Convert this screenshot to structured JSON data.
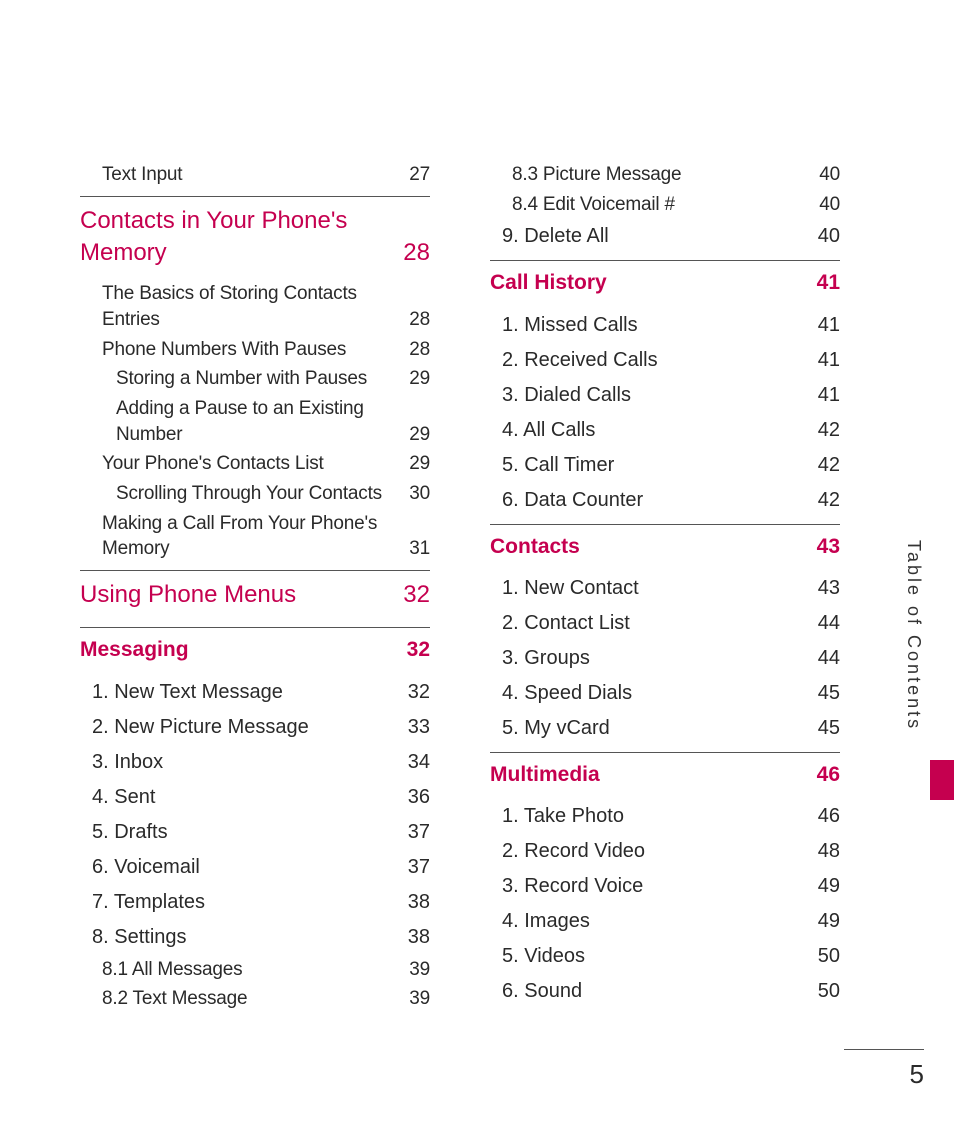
{
  "colors": {
    "accent": "#c5004f",
    "text": "#2a2a2a",
    "rule": "#555555",
    "bg": "#ffffff"
  },
  "pageNumber": "5",
  "sideLabel": "Table of Contents",
  "left": [
    {
      "cls": "item1",
      "label": "Text Input",
      "page": "27"
    },
    {
      "cls": "chapter",
      "label": "Contacts in Your Phone's Memory",
      "page": "28"
    },
    {
      "cls": "item1",
      "label": "The Basics of Storing Contacts Entries",
      "page": "28"
    },
    {
      "cls": "item1",
      "label": "Phone Numbers With Pauses",
      "page": "28"
    },
    {
      "cls": "item2",
      "label": "Storing a Number with Pauses",
      "page": "29"
    },
    {
      "cls": "item2",
      "label": "Adding a Pause to an Existing Number",
      "page": "29"
    },
    {
      "cls": "item1",
      "label": "Your Phone's Contacts List",
      "page": "29"
    },
    {
      "cls": "item2",
      "label": "Scrolling Through Your Contacts",
      "page": "30"
    },
    {
      "cls": "item1",
      "label": "Making a Call From Your Phone's Memory",
      "page": "31"
    },
    {
      "cls": "chapter",
      "label": "Using Phone Menus",
      "page": "32"
    },
    {
      "cls": "section",
      "label": "Messaging",
      "page": "32"
    },
    {
      "cls": "item-bold",
      "label": "1. New Text Message",
      "page": "32"
    },
    {
      "cls": "item-bold",
      "label": "2. New Picture Message",
      "page": "33"
    },
    {
      "cls": "item-bold",
      "label": "3. Inbox",
      "page": "34"
    },
    {
      "cls": "item-bold",
      "label": "4. Sent",
      "page": "36"
    },
    {
      "cls": "item-bold",
      "label": "5. Drafts",
      "page": "37"
    },
    {
      "cls": "item-bold",
      "label": "6. Voicemail",
      "page": "37"
    },
    {
      "cls": "item-bold",
      "label": "7. Templates",
      "page": "38"
    },
    {
      "cls": "item-bold",
      "label": "8. Settings",
      "page": "38"
    },
    {
      "cls": "item1",
      "label": "8.1 All Messages",
      "page": "39"
    },
    {
      "cls": "item1",
      "label": "8.2 Text Message",
      "page": "39"
    }
  ],
  "right": [
    {
      "cls": "item1",
      "label": "8.3 Picture Message",
      "page": "40"
    },
    {
      "cls": "item1",
      "label": "8.4 Edit Voicemail #",
      "page": "40"
    },
    {
      "cls": "item-bold",
      "label": "9. Delete All",
      "page": "40"
    },
    {
      "cls": "section",
      "label": "Call History",
      "page": "41"
    },
    {
      "cls": "item-bold",
      "label": "1. Missed Calls",
      "page": "41"
    },
    {
      "cls": "item-bold",
      "label": "2. Received Calls",
      "page": "41"
    },
    {
      "cls": "item-bold",
      "label": "3. Dialed Calls",
      "page": "41"
    },
    {
      "cls": "item-bold",
      "label": "4. All Calls",
      "page": "42"
    },
    {
      "cls": "item-bold",
      "label": "5. Call Timer",
      "page": "42"
    },
    {
      "cls": "item-bold",
      "label": "6. Data Counter",
      "page": "42"
    },
    {
      "cls": "section",
      "label": "Contacts",
      "page": "43"
    },
    {
      "cls": "item-bold",
      "label": "1. New Contact",
      "page": "43"
    },
    {
      "cls": "item-bold",
      "label": "2. Contact List",
      "page": "44"
    },
    {
      "cls": "item-bold",
      "label": "3. Groups",
      "page": "44"
    },
    {
      "cls": "item-bold",
      "label": "4. Speed Dials",
      "page": "45"
    },
    {
      "cls": "item-bold",
      "label": "5. My vCard",
      "page": "45"
    },
    {
      "cls": "section",
      "label": "Multimedia",
      "page": "46"
    },
    {
      "cls": "item-bold",
      "label": "1. Take Photo",
      "page": "46"
    },
    {
      "cls": "item-bold",
      "label": "2. Record Video",
      "page": "48"
    },
    {
      "cls": "item-bold",
      "label": "3. Record Voice",
      "page": "49"
    },
    {
      "cls": "item-bold",
      "label": "4. Images",
      "page": "49"
    },
    {
      "cls": "item-bold",
      "label": "5. Videos",
      "page": "50"
    },
    {
      "cls": "item-bold",
      "label": "6. Sound",
      "page": "50"
    }
  ]
}
